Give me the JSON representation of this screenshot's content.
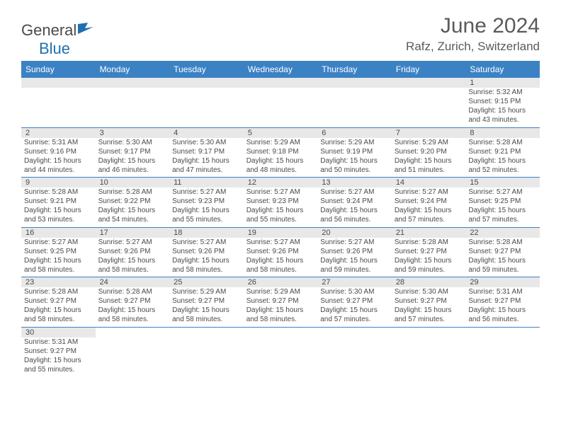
{
  "logo": {
    "text_dark": "General",
    "text_blue": "Blue"
  },
  "title": "June 2024",
  "location": "Rafz, Zurich, Switzerland",
  "colors": {
    "header_bg": "#3b82c4",
    "header_text": "#ffffff",
    "daynum_bg": "#e8e8e8",
    "text": "#4a4a4a",
    "border": "#3b82c4",
    "blank_bg": "#f0f0f0"
  },
  "day_headers": [
    "Sunday",
    "Monday",
    "Tuesday",
    "Wednesday",
    "Thursday",
    "Friday",
    "Saturday"
  ],
  "weeks": [
    [
      null,
      null,
      null,
      null,
      null,
      null,
      {
        "n": "1",
        "sr": "5:32 AM",
        "ss": "9:15 PM",
        "dl": "15 hours and 43 minutes."
      }
    ],
    [
      {
        "n": "2",
        "sr": "5:31 AM",
        "ss": "9:16 PM",
        "dl": "15 hours and 44 minutes."
      },
      {
        "n": "3",
        "sr": "5:30 AM",
        "ss": "9:17 PM",
        "dl": "15 hours and 46 minutes."
      },
      {
        "n": "4",
        "sr": "5:30 AM",
        "ss": "9:17 PM",
        "dl": "15 hours and 47 minutes."
      },
      {
        "n": "5",
        "sr": "5:29 AM",
        "ss": "9:18 PM",
        "dl": "15 hours and 48 minutes."
      },
      {
        "n": "6",
        "sr": "5:29 AM",
        "ss": "9:19 PM",
        "dl": "15 hours and 50 minutes."
      },
      {
        "n": "7",
        "sr": "5:29 AM",
        "ss": "9:20 PM",
        "dl": "15 hours and 51 minutes."
      },
      {
        "n": "8",
        "sr": "5:28 AM",
        "ss": "9:21 PM",
        "dl": "15 hours and 52 minutes."
      }
    ],
    [
      {
        "n": "9",
        "sr": "5:28 AM",
        "ss": "9:21 PM",
        "dl": "15 hours and 53 minutes."
      },
      {
        "n": "10",
        "sr": "5:28 AM",
        "ss": "9:22 PM",
        "dl": "15 hours and 54 minutes."
      },
      {
        "n": "11",
        "sr": "5:27 AM",
        "ss": "9:23 PM",
        "dl": "15 hours and 55 minutes."
      },
      {
        "n": "12",
        "sr": "5:27 AM",
        "ss": "9:23 PM",
        "dl": "15 hours and 55 minutes."
      },
      {
        "n": "13",
        "sr": "5:27 AM",
        "ss": "9:24 PM",
        "dl": "15 hours and 56 minutes."
      },
      {
        "n": "14",
        "sr": "5:27 AM",
        "ss": "9:24 PM",
        "dl": "15 hours and 57 minutes."
      },
      {
        "n": "15",
        "sr": "5:27 AM",
        "ss": "9:25 PM",
        "dl": "15 hours and 57 minutes."
      }
    ],
    [
      {
        "n": "16",
        "sr": "5:27 AM",
        "ss": "9:25 PM",
        "dl": "15 hours and 58 minutes."
      },
      {
        "n": "17",
        "sr": "5:27 AM",
        "ss": "9:26 PM",
        "dl": "15 hours and 58 minutes."
      },
      {
        "n": "18",
        "sr": "5:27 AM",
        "ss": "9:26 PM",
        "dl": "15 hours and 58 minutes."
      },
      {
        "n": "19",
        "sr": "5:27 AM",
        "ss": "9:26 PM",
        "dl": "15 hours and 58 minutes."
      },
      {
        "n": "20",
        "sr": "5:27 AM",
        "ss": "9:26 PM",
        "dl": "15 hours and 59 minutes."
      },
      {
        "n": "21",
        "sr": "5:28 AM",
        "ss": "9:27 PM",
        "dl": "15 hours and 59 minutes."
      },
      {
        "n": "22",
        "sr": "5:28 AM",
        "ss": "9:27 PM",
        "dl": "15 hours and 59 minutes."
      }
    ],
    [
      {
        "n": "23",
        "sr": "5:28 AM",
        "ss": "9:27 PM",
        "dl": "15 hours and 58 minutes."
      },
      {
        "n": "24",
        "sr": "5:28 AM",
        "ss": "9:27 PM",
        "dl": "15 hours and 58 minutes."
      },
      {
        "n": "25",
        "sr": "5:29 AM",
        "ss": "9:27 PM",
        "dl": "15 hours and 58 minutes."
      },
      {
        "n": "26",
        "sr": "5:29 AM",
        "ss": "9:27 PM",
        "dl": "15 hours and 58 minutes."
      },
      {
        "n": "27",
        "sr": "5:30 AM",
        "ss": "9:27 PM",
        "dl": "15 hours and 57 minutes."
      },
      {
        "n": "28",
        "sr": "5:30 AM",
        "ss": "9:27 PM",
        "dl": "15 hours and 57 minutes."
      },
      {
        "n": "29",
        "sr": "5:31 AM",
        "ss": "9:27 PM",
        "dl": "15 hours and 56 minutes."
      }
    ],
    [
      {
        "n": "30",
        "sr": "5:31 AM",
        "ss": "9:27 PM",
        "dl": "15 hours and 55 minutes."
      },
      null,
      null,
      null,
      null,
      null,
      null
    ]
  ]
}
